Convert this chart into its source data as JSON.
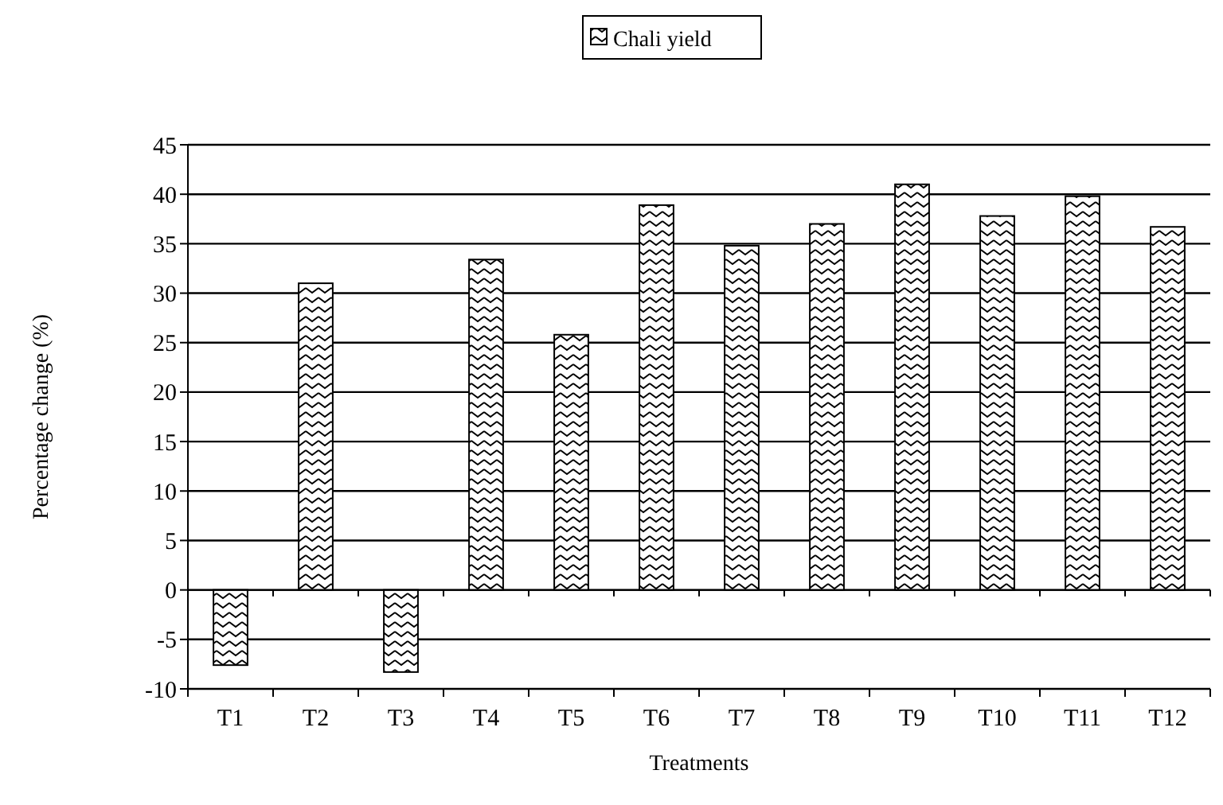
{
  "chart_data": {
    "type": "bar",
    "xlabel": "Treatments",
    "ylabel": "Percentage change (%)",
    "categories": [
      "T1",
      "T2",
      "T3",
      "T4",
      "T5",
      "T6",
      "T7",
      "T8",
      "T9",
      "T10",
      "T11",
      "T12"
    ],
    "series": [
      {
        "name": "Chali yield",
        "color": "#000000",
        "values": [
          -7.6,
          31,
          -8.3,
          33.4,
          25.8,
          38.9,
          34.8,
          37,
          41,
          37.8,
          39.8,
          36.7
        ]
      }
    ],
    "ylim": [
      -10,
      45
    ],
    "yticks": [
      -10,
      -5,
      0,
      5,
      10,
      15,
      20,
      25,
      30,
      35,
      40,
      45
    ],
    "grid": "y",
    "legend": "top"
  }
}
